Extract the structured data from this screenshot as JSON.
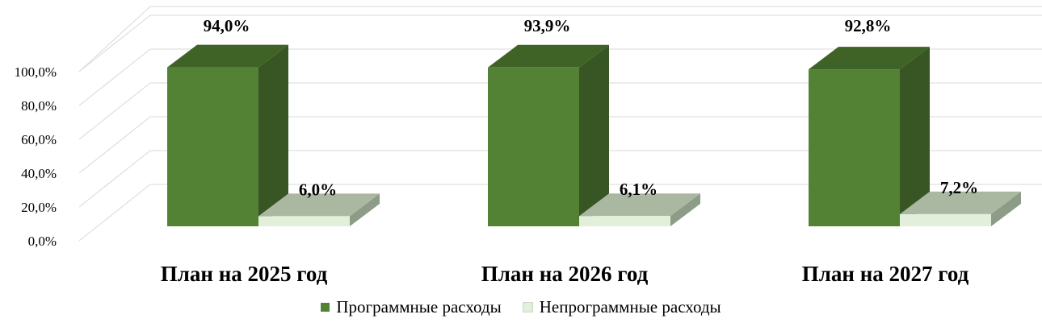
{
  "chart_data": {
    "type": "bar",
    "style": "3d-clustered-column",
    "categories": [
      "План на 2025 год",
      "План на 2026 год",
      "План на 2027 год"
    ],
    "series": [
      {
        "name": "Программные расходы",
        "values": [
          94.0,
          93.9,
          92.8
        ],
        "labels": [
          "94,0%",
          "93,9%",
          "92,8%"
        ],
        "color": "#548235",
        "side_color": "#375623",
        "top_color": "#3f6327"
      },
      {
        "name": "Непрограммные расходы",
        "values": [
          6.0,
          6.1,
          7.2
        ],
        "labels": [
          "6,0%",
          "6,1%",
          "7,2%"
        ],
        "color": "#e2efda",
        "side_color": "#8d9c86",
        "top_color": "#aab8a2"
      }
    ],
    "ylim": [
      0,
      100
    ],
    "yticks": [
      "0,0%",
      "20,0%",
      "40,0%",
      "60,0%",
      "80,0%",
      "100,0%"
    ],
    "grid": true,
    "legend": "bottom"
  }
}
